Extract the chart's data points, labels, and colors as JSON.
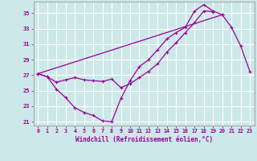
{
  "xlabel": "Windchill (Refroidissement éolien,°C)",
  "bg_color": "#cce8e8",
  "line_color": "#990099",
  "grid_color": "#ffffff",
  "xlim": [
    -0.5,
    23.5
  ],
  "ylim": [
    20.5,
    36.5
  ],
  "yticks": [
    21,
    23,
    25,
    27,
    29,
    31,
    33,
    35
  ],
  "xticks": [
    0,
    1,
    2,
    3,
    4,
    5,
    6,
    7,
    8,
    9,
    10,
    11,
    12,
    13,
    14,
    15,
    16,
    17,
    18,
    19,
    20,
    21,
    22,
    23
  ],
  "series1_x": [
    0,
    1,
    2,
    3,
    4,
    5,
    6,
    7,
    8,
    9,
    10,
    11,
    12,
    13,
    14,
    15,
    16,
    17,
    18,
    19,
    20
  ],
  "series1_y": [
    27.2,
    26.8,
    25.2,
    24.1,
    22.8,
    22.2,
    21.8,
    21.1,
    21.0,
    24.0,
    26.3,
    28.1,
    29.0,
    30.3,
    31.7,
    32.5,
    33.2,
    35.3,
    36.1,
    35.3,
    34.8
  ],
  "series2_x": [
    0,
    1,
    2,
    3,
    4,
    5,
    6,
    7,
    8,
    9,
    10,
    11,
    12,
    13,
    14,
    15,
    16,
    17,
    18,
    19
  ],
  "series2_y": [
    27.2,
    26.8,
    26.1,
    26.4,
    26.7,
    26.4,
    26.3,
    26.2,
    26.5,
    25.4,
    25.9,
    26.7,
    27.5,
    28.5,
    30.0,
    31.2,
    32.5,
    33.8,
    35.3,
    35.2
  ],
  "series3_x": [
    0,
    20,
    21,
    22,
    23
  ],
  "series3_y": [
    27.2,
    34.8,
    33.2,
    30.8,
    27.5
  ]
}
